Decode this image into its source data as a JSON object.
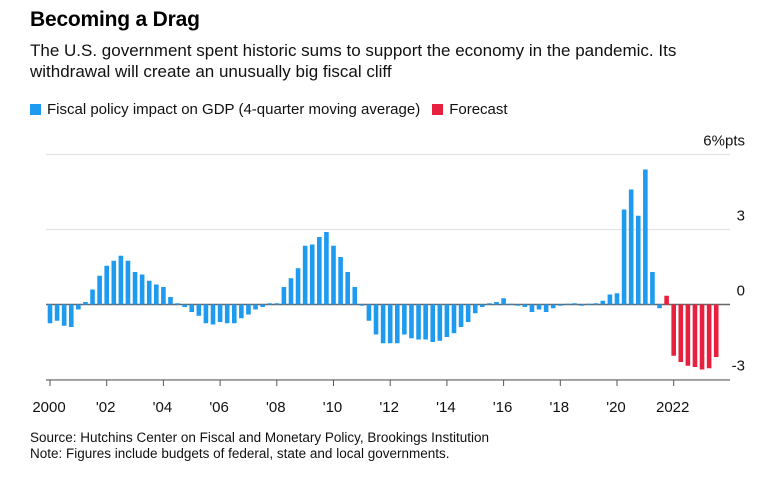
{
  "title": "Becoming a Drag",
  "subtitle": "The U.S. government spent historic sums to support the economy in the pandemic. Its withdrawal will create an unusually big fiscal cliff",
  "legend": [
    {
      "label": "Fiscal policy impact on GDP (4-quarter moving average)",
      "color": "#1e9bf0"
    },
    {
      "label": "Forecast",
      "color": "#e8203f"
    }
  ],
  "footer": {
    "source": "Source: Hutchins Center on Fiscal and Monetary Policy, Brookings Institution",
    "note": "Note: Figures include budgets of federal, state and local governments."
  },
  "chart_data": {
    "type": "bar",
    "title": "Becoming a Drag",
    "ylabel": "%pts",
    "y_unit_label": "6%pts",
    "ylim": [
      -3,
      6
    ],
    "yticks": [
      {
        "value": 6,
        "label": "6%pts"
      },
      {
        "value": 3,
        "label": "3"
      },
      {
        "value": 0,
        "label": "0"
      },
      {
        "value": -3,
        "label": "-3"
      }
    ],
    "xticks": [
      {
        "year": 2000,
        "label": "2000"
      },
      {
        "year": 2002,
        "label": "'02"
      },
      {
        "year": 2004,
        "label": "'04"
      },
      {
        "year": 2006,
        "label": "'06"
      },
      {
        "year": 2008,
        "label": "'08"
      },
      {
        "year": 2010,
        "label": "'10"
      },
      {
        "year": 2012,
        "label": "'12"
      },
      {
        "year": 2014,
        "label": "'14"
      },
      {
        "year": 2016,
        "label": "'16"
      },
      {
        "year": 2018,
        "label": "'18"
      },
      {
        "year": 2020,
        "label": "'20"
      },
      {
        "year": 2022,
        "label": "2022"
      }
    ],
    "grid": true,
    "legend_position": "top-left",
    "start_quarter": "2000Q1",
    "series": [
      {
        "name": "Fiscal policy impact on GDP (4-quarter moving average)",
        "color": "#1e9bf0",
        "values": [
          -0.75,
          -0.65,
          -0.85,
          -0.9,
          -0.2,
          0.1,
          0.6,
          1.15,
          1.55,
          1.75,
          1.95,
          1.75,
          1.3,
          1.2,
          0.95,
          0.8,
          0.7,
          0.3,
          0.05,
          -0.1,
          -0.3,
          -0.45,
          -0.75,
          -0.8,
          -0.7,
          -0.75,
          -0.75,
          -0.55,
          -0.4,
          -0.2,
          -0.1,
          0.05,
          0.05,
          0.7,
          1.05,
          1.45,
          2.35,
          2.4,
          2.7,
          2.9,
          2.35,
          1.9,
          1.3,
          0.7,
          -0.05,
          -0.65,
          -1.2,
          -1.55,
          -1.55,
          -1.55,
          -1.2,
          -1.35,
          -1.4,
          -1.4,
          -1.5,
          -1.45,
          -1.3,
          -1.15,
          -0.9,
          -0.7,
          -0.35,
          -0.1,
          0.05,
          0.1,
          0.25,
          0.0,
          -0.05,
          -0.1,
          -0.3,
          -0.2,
          -0.3,
          -0.15,
          -0.05,
          0.0,
          0.05,
          -0.05,
          0.0,
          0.05,
          0.15,
          0.4,
          0.45,
          3.8,
          4.6,
          3.55,
          5.4,
          1.3,
          -0.15
        ]
      },
      {
        "name": "Forecast",
        "color": "#e8203f",
        "start_quarter": "2021Q4",
        "values": [
          0.35,
          -2.05,
          -2.3,
          -2.45,
          -2.5,
          -2.6,
          -2.55,
          -2.1
        ]
      }
    ]
  }
}
